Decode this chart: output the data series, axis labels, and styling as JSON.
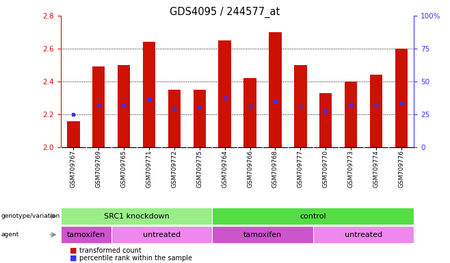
{
  "title": "GDS4095 / 244577_at",
  "samples": [
    "GSM709767",
    "GSM709769",
    "GSM709765",
    "GSM709771",
    "GSM709772",
    "GSM709775",
    "GSM709764",
    "GSM709766",
    "GSM709768",
    "GSM709777",
    "GSM709770",
    "GSM709773",
    "GSM709774",
    "GSM709776"
  ],
  "bar_heights": [
    2.16,
    2.49,
    2.5,
    2.64,
    2.35,
    2.35,
    2.65,
    2.42,
    2.7,
    2.5,
    2.33,
    2.4,
    2.44,
    2.6
  ],
  "percentile_values": [
    2.2,
    2.26,
    2.26,
    2.29,
    2.23,
    2.24,
    2.3,
    2.25,
    2.28,
    2.25,
    2.22,
    2.26,
    2.26,
    2.27
  ],
  "bar_color": "#cc1100",
  "dot_color": "#3333ff",
  "ylim_left": [
    2.0,
    2.8
  ],
  "ylim_right": [
    0,
    100
  ],
  "yticks_left": [
    2.0,
    2.2,
    2.4,
    2.6,
    2.8
  ],
  "yticks_right": [
    0,
    25,
    50,
    75,
    100
  ],
  "ytick_labels_right": [
    "0",
    "25",
    "50",
    "75",
    "100%"
  ],
  "grid_values": [
    2.2,
    2.4,
    2.6
  ],
  "genotype_groups": [
    {
      "label": "SRC1 knockdown",
      "start": 0,
      "end": 6,
      "color": "#99ee88"
    },
    {
      "label": "control",
      "start": 6,
      "end": 14,
      "color": "#55dd44"
    }
  ],
  "agent_groups": [
    {
      "label": "tamoxifen",
      "start": 0,
      "end": 2,
      "color": "#cc55cc"
    },
    {
      "label": "untreated",
      "start": 2,
      "end": 6,
      "color": "#ee88ee"
    },
    {
      "label": "tamoxifen",
      "start": 6,
      "end": 10,
      "color": "#cc55cc"
    },
    {
      "label": "untreated",
      "start": 10,
      "end": 14,
      "color": "#ee88ee"
    }
  ],
  "legend_items": [
    {
      "label": "transformed count",
      "color": "#cc1100"
    },
    {
      "label": "percentile rank within the sample",
      "color": "#3333ff"
    }
  ],
  "label_genotype": "genotype/variation",
  "label_agent": "agent",
  "bar_width": 0.5,
  "left_ylabel_color": "#cc1100",
  "right_ylabel_color": "#3333ff",
  "xtick_bg_color": "#cccccc"
}
